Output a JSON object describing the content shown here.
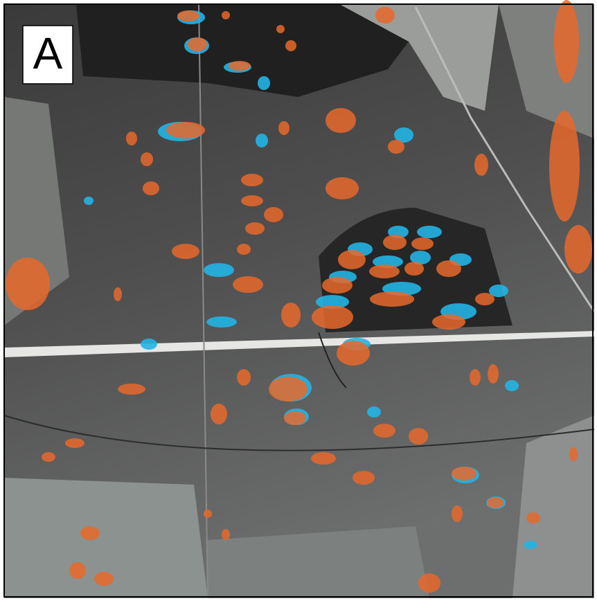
{
  "panel": {
    "label": "A"
  }
}
